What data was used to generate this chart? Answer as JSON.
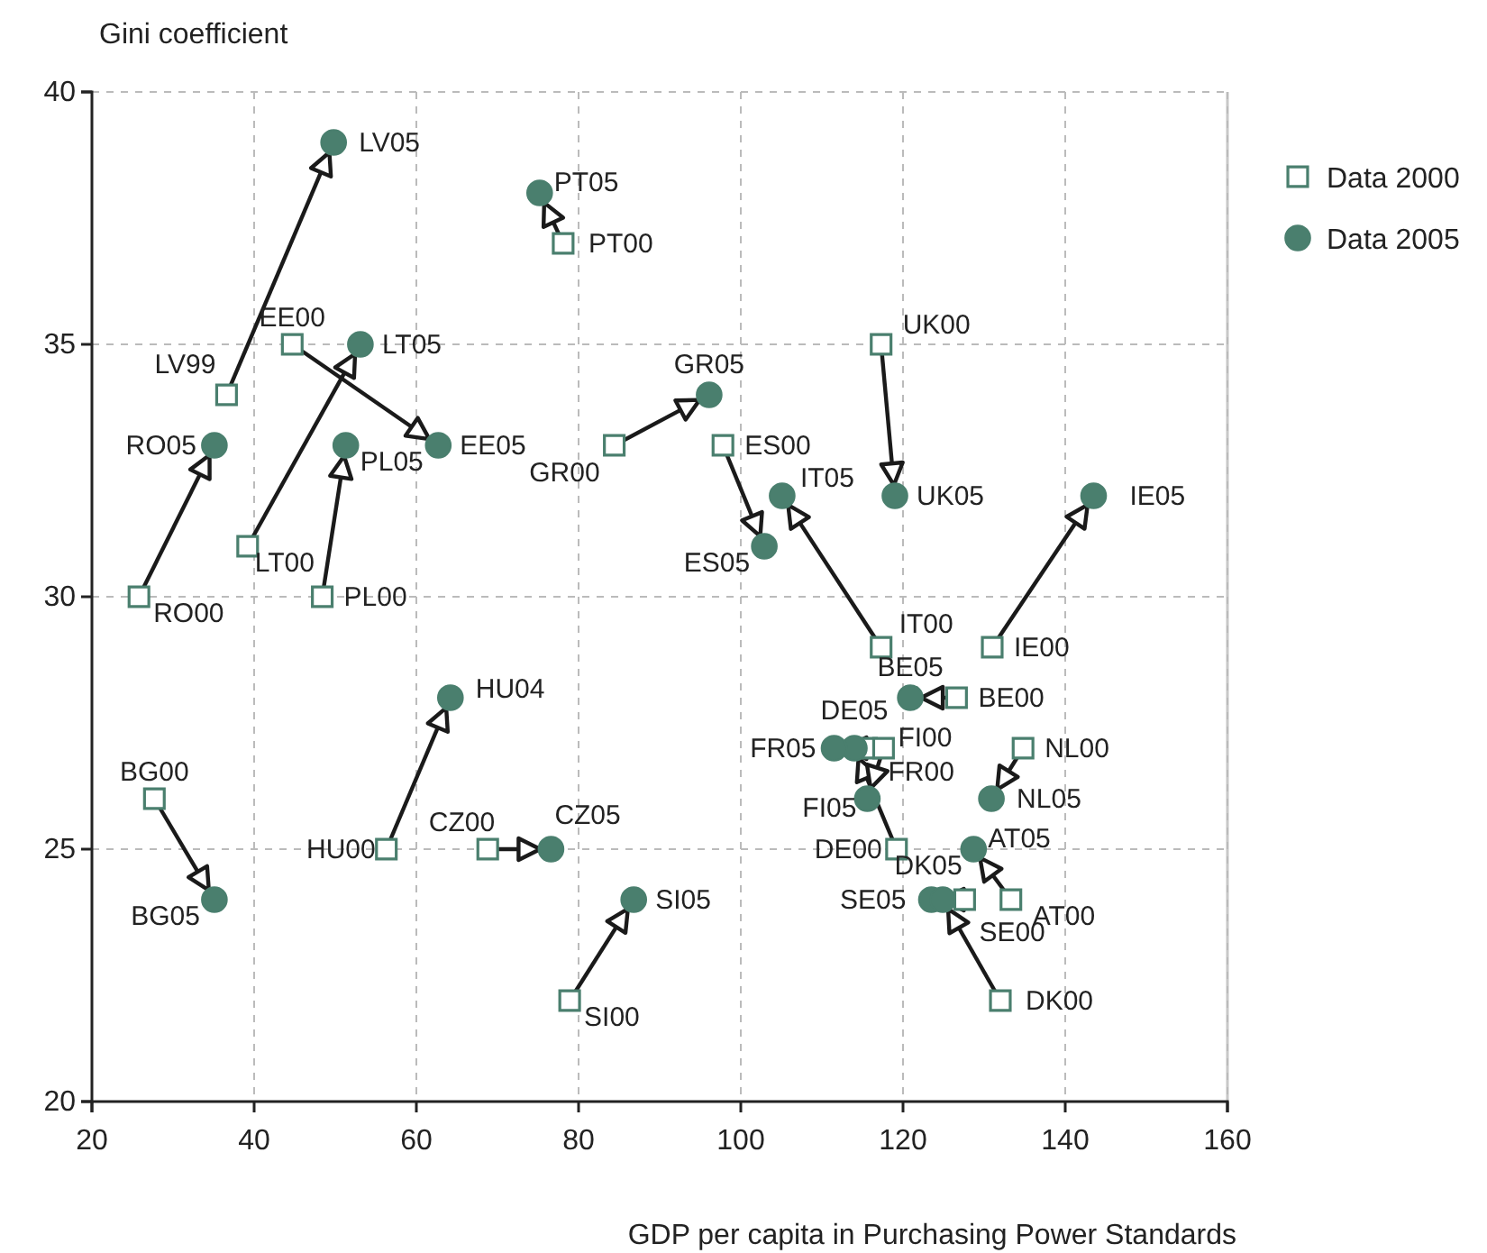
{
  "chart_data": {
    "type": "scatter",
    "xlabel": "GDP per capita in Purchasing Power Standards",
    "ylabel": "Gini coefficient",
    "xlim": [
      20,
      160
    ],
    "xticks": [
      20,
      40,
      60,
      80,
      100,
      120,
      140,
      160
    ],
    "ylim": [
      20,
      40
    ],
    "yticks": [
      20,
      25,
      30,
      35,
      40
    ],
    "grid": true,
    "legend": "top right",
    "series": [
      {
        "name": "Data 2000",
        "color": "#4a7f6e",
        "marker": "square",
        "x": [
          36.6,
          25.8,
          44.7,
          39.2,
          48.4,
          78.1,
          84.4,
          97.8,
          117.3,
          117.3,
          131.0,
          126.6,
          119.2,
          115.5,
          117.6,
          134.8,
          133.3,
          127.6,
          132.0,
          27.7,
          56.3,
          68.8,
          78.9
        ],
        "values": [
          34,
          30,
          35,
          31,
          30,
          37,
          33,
          33,
          29,
          35,
          29,
          28,
          25,
          27,
          27,
          27,
          24,
          24,
          22,
          26,
          25,
          25,
          22
        ],
        "value_labels": [
          "LV99",
          "RO00",
          "EE00",
          "LT00",
          "PL00",
          "PT00",
          "GR00",
          "ES00",
          "IT00",
          "UK00",
          "IE00",
          "BE00",
          "DE00",
          "FR00",
          "FI00",
          "NL00",
          "AT00",
          "SE00",
          "DK00",
          "BG00",
          "HU00",
          "CZ00",
          "SI00"
        ]
      },
      {
        "name": "Data 2005",
        "color": "#4a7f6e",
        "marker": "circle",
        "x": [
          49.8,
          35.1,
          62.7,
          53.1,
          51.3,
          75.2,
          96.1,
          102.9,
          105.1,
          119.0,
          143.5,
          120.9,
          114.0,
          111.5,
          115.6,
          130.9,
          128.7,
          123.5,
          124.9,
          35.1,
          64.2,
          76.6,
          86.8
        ],
        "values": [
          39,
          33,
          33,
          35,
          33,
          38,
          34,
          31,
          32,
          32,
          32,
          28,
          27,
          27,
          26,
          26,
          25,
          24,
          24,
          24,
          28,
          25,
          24
        ],
        "value_labels": [
          "LV05",
          "RO05",
          "EE05",
          "LT05",
          "PL05",
          "PT05",
          "GR05",
          "ES05",
          "IT05",
          "UK05",
          "IE05",
          "BE05",
          "DE05",
          "FR05",
          "FI05",
          "NL05",
          "AT05",
          "SE05",
          "DK05",
          "BG05",
          "HU04",
          "CZ05",
          "SI05"
        ]
      }
    ]
  }
}
